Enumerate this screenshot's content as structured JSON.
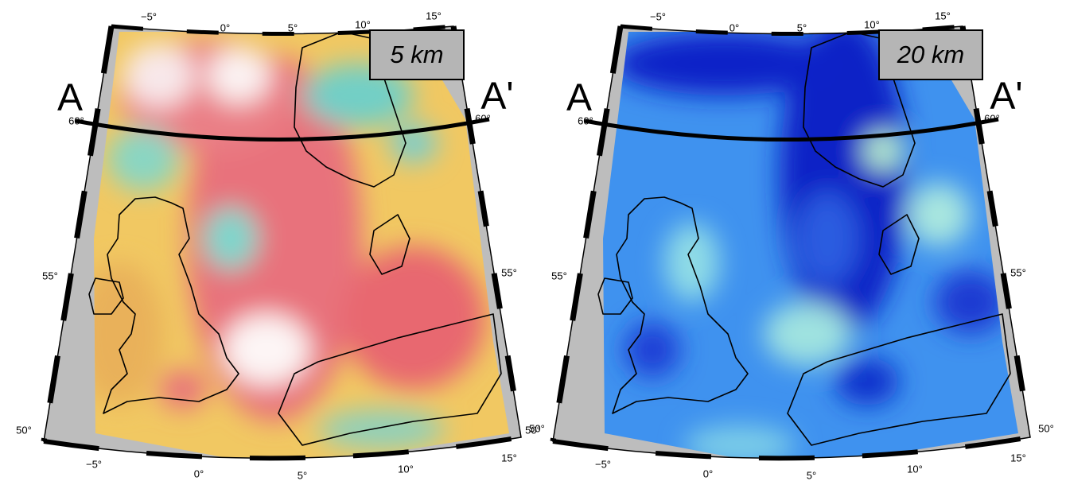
{
  "panels": [
    {
      "label": "5 km",
      "profile": {
        "start": "A",
        "end": "A'"
      },
      "lon_top": [
        "−5°",
        "0°",
        "5°",
        "10°",
        "15°"
      ],
      "lon_bottom": [
        "−5°",
        "0°",
        "5°",
        "10°",
        "15°"
      ],
      "lat_left": [
        "60°",
        "55°",
        "50°"
      ],
      "lat_right": [
        "60°",
        "55°",
        "50°"
      ]
    },
    {
      "label": "20 km",
      "profile": {
        "start": "A",
        "end": "A'"
      },
      "lon_top": [
        "−5°",
        "0°",
        "5°",
        "10°",
        "15°"
      ],
      "lon_bottom": [
        "−5°",
        "0°",
        "5°",
        "10°",
        "15°"
      ],
      "lat_left": [
        "60°",
        "55°",
        "50°"
      ],
      "lat_right": [
        "60°",
        "55°",
        "50°"
      ]
    }
  ]
}
